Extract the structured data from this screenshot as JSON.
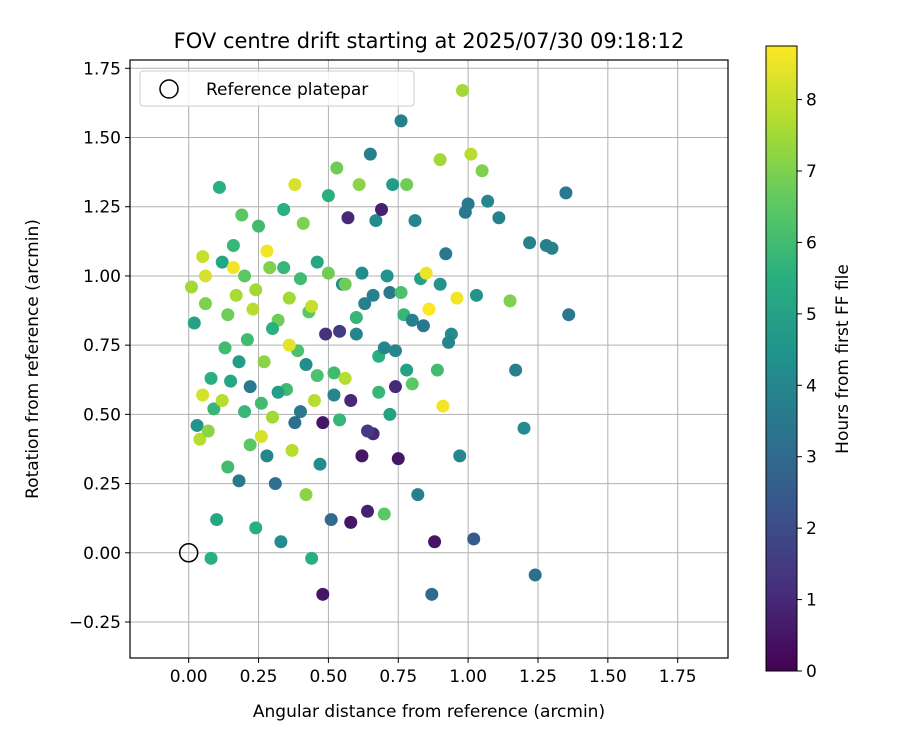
{
  "chart_data": {
    "type": "scatter",
    "title": "FOV centre drift starting at 2025/07/30 09:18:12",
    "xlabel": "Angular distance from reference (arcmin)",
    "ylabel": "Rotation from reference (arcmin)",
    "xlim": [
      -0.21,
      1.93
    ],
    "ylim": [
      -0.38,
      1.78
    ],
    "xticks": [
      "0.00",
      "0.25",
      "0.50",
      "0.75",
      "1.00",
      "1.25",
      "1.50",
      "1.75"
    ],
    "yticks": [
      "−0.25",
      "0.00",
      "0.25",
      "0.50",
      "0.75",
      "1.00",
      "1.25",
      "1.50",
      "1.75"
    ],
    "grid": true,
    "legend": {
      "placement": "top-left",
      "entries": [
        "Reference platepar"
      ]
    },
    "reference_point": {
      "x": 0.0,
      "y": 0.0
    },
    "colorbar": {
      "label": "Hours from first FF file",
      "range": [
        0,
        8.75
      ],
      "ticks": [
        "0",
        "1",
        "2",
        "3",
        "4",
        "5",
        "6",
        "7",
        "8"
      ],
      "colormap": "viridis"
    },
    "points": [
      {
        "x": 0.01,
        "y": 0.96,
        "h": 7.5
      },
      {
        "x": 0.02,
        "y": 0.83,
        "h": 5.0
      },
      {
        "x": 0.03,
        "y": 0.46,
        "h": 4.5
      },
      {
        "x": 0.04,
        "y": 0.41,
        "h": 7.8
      },
      {
        "x": 0.05,
        "y": 0.57,
        "h": 8.2
      },
      {
        "x": 0.06,
        "y": 0.9,
        "h": 7.0
      },
      {
        "x": 0.07,
        "y": 0.44,
        "h": 7.2
      },
      {
        "x": 0.08,
        "y": -0.02,
        "h": 5.5
      },
      {
        "x": 0.09,
        "y": 0.52,
        "h": 5.8
      },
      {
        "x": 0.1,
        "y": 0.12,
        "h": 5.2
      },
      {
        "x": 0.11,
        "y": 1.32,
        "h": 5.5
      },
      {
        "x": 0.12,
        "y": 0.55,
        "h": 7.8
      },
      {
        "x": 0.13,
        "y": 0.74,
        "h": 6.0
      },
      {
        "x": 0.14,
        "y": 0.31,
        "h": 6.0
      },
      {
        "x": 0.15,
        "y": 0.62,
        "h": 5.2
      },
      {
        "x": 0.16,
        "y": 1.11,
        "h": 5.8
      },
      {
        "x": 0.17,
        "y": 0.93,
        "h": 7.6
      },
      {
        "x": 0.18,
        "y": 0.26,
        "h": 3.5
      },
      {
        "x": 0.19,
        "y": 1.22,
        "h": 6.5
      },
      {
        "x": 0.2,
        "y": 0.51,
        "h": 5.8
      },
      {
        "x": 0.21,
        "y": 0.77,
        "h": 6.0
      },
      {
        "x": 0.22,
        "y": 0.39,
        "h": 6.5
      },
      {
        "x": 0.23,
        "y": 0.88,
        "h": 7.8
      },
      {
        "x": 0.24,
        "y": 0.09,
        "h": 5.5
      },
      {
        "x": 0.25,
        "y": 1.18,
        "h": 6.0
      },
      {
        "x": 0.26,
        "y": 0.42,
        "h": 8.2
      },
      {
        "x": 0.27,
        "y": 0.69,
        "h": 7.2
      },
      {
        "x": 0.28,
        "y": 0.35,
        "h": 4.0
      },
      {
        "x": 0.29,
        "y": 1.03,
        "h": 7.0
      },
      {
        "x": 0.3,
        "y": 0.49,
        "h": 7.5
      },
      {
        "x": 0.31,
        "y": 0.25,
        "h": 3.2
      },
      {
        "x": 0.32,
        "y": 0.84,
        "h": 6.8
      },
      {
        "x": 0.33,
        "y": 0.04,
        "h": 4.2
      },
      {
        "x": 0.34,
        "y": 1.24,
        "h": 5.5
      },
      {
        "x": 0.35,
        "y": 0.59,
        "h": 6.0
      },
      {
        "x": 0.36,
        "y": 0.92,
        "h": 7.5
      },
      {
        "x": 0.37,
        "y": 0.37,
        "h": 7.8
      },
      {
        "x": 0.38,
        "y": 1.33,
        "h": 8.2
      },
      {
        "x": 0.39,
        "y": 0.73,
        "h": 6.2
      },
      {
        "x": 0.4,
        "y": 0.51,
        "h": 3.5
      },
      {
        "x": 0.41,
        "y": 1.19,
        "h": 7.0
      },
      {
        "x": 0.42,
        "y": 0.21,
        "h": 7.2
      },
      {
        "x": 0.43,
        "y": 0.87,
        "h": 6.5
      },
      {
        "x": 0.44,
        "y": -0.02,
        "h": 5.5
      },
      {
        "x": 0.45,
        "y": 0.55,
        "h": 7.8
      },
      {
        "x": 0.46,
        "y": 1.05,
        "h": 5.2
      },
      {
        "x": 0.47,
        "y": 0.32,
        "h": 4.2
      },
      {
        "x": 0.48,
        "y": -0.15,
        "h": 0.5
      },
      {
        "x": 0.49,
        "y": 0.79,
        "h": 1.2
      },
      {
        "x": 0.5,
        "y": 1.29,
        "h": 5.5
      },
      {
        "x": 0.51,
        "y": 0.12,
        "h": 3.0
      },
      {
        "x": 0.52,
        "y": 0.65,
        "h": 6.0
      },
      {
        "x": 0.53,
        "y": 1.39,
        "h": 6.8
      },
      {
        "x": 0.54,
        "y": 0.48,
        "h": 5.8
      },
      {
        "x": 0.55,
        "y": 0.97,
        "h": 4.2
      },
      {
        "x": 0.56,
        "y": 0.63,
        "h": 7.8
      },
      {
        "x": 0.57,
        "y": 1.21,
        "h": 1.0
      },
      {
        "x": 0.58,
        "y": 0.11,
        "h": 0.5
      },
      {
        "x": 0.6,
        "y": 0.79,
        "h": 4.0
      },
      {
        "x": 0.61,
        "y": 1.33,
        "h": 7.2
      },
      {
        "x": 0.62,
        "y": 0.35,
        "h": 0.5
      },
      {
        "x": 0.63,
        "y": 0.9,
        "h": 3.8
      },
      {
        "x": 0.64,
        "y": 0.15,
        "h": 0.8
      },
      {
        "x": 0.65,
        "y": 1.44,
        "h": 3.8
      },
      {
        "x": 0.66,
        "y": 0.43,
        "h": 1.0
      },
      {
        "x": 0.67,
        "y": 1.2,
        "h": 4.2
      },
      {
        "x": 0.68,
        "y": 0.71,
        "h": 5.5
      },
      {
        "x": 0.69,
        "y": 1.24,
        "h": 0.8
      },
      {
        "x": 0.7,
        "y": 0.14,
        "h": 6.5
      },
      {
        "x": 0.71,
        "y": 1.0,
        "h": 4.5
      },
      {
        "x": 0.72,
        "y": 0.5,
        "h": 5.0
      },
      {
        "x": 0.73,
        "y": 1.33,
        "h": 4.8
      },
      {
        "x": 0.74,
        "y": 0.6,
        "h": 1.0
      },
      {
        "x": 0.75,
        "y": 0.34,
        "h": 0.5
      },
      {
        "x": 0.76,
        "y": 1.56,
        "h": 3.8
      },
      {
        "x": 0.77,
        "y": 0.86,
        "h": 5.8
      },
      {
        "x": 0.78,
        "y": 1.33,
        "h": 6.8
      },
      {
        "x": 0.8,
        "y": 0.61,
        "h": 6.5
      },
      {
        "x": 0.81,
        "y": 1.2,
        "h": 4.0
      },
      {
        "x": 0.82,
        "y": 0.21,
        "h": 3.8
      },
      {
        "x": 0.83,
        "y": 0.99,
        "h": 5.0
      },
      {
        "x": 0.84,
        "y": 0.82,
        "h": 3.5
      },
      {
        "x": 0.85,
        "y": 1.01,
        "h": 8.5
      },
      {
        "x": 0.86,
        "y": 0.88,
        "h": 8.8
      },
      {
        "x": 0.87,
        "y": -0.15,
        "h": 3.0
      },
      {
        "x": 0.88,
        "y": 0.04,
        "h": 0.5
      },
      {
        "x": 0.89,
        "y": 0.66,
        "h": 6.0
      },
      {
        "x": 0.9,
        "y": 1.42,
        "h": 7.5
      },
      {
        "x": 0.91,
        "y": 0.53,
        "h": 8.6
      },
      {
        "x": 0.92,
        "y": 1.08,
        "h": 3.5
      },
      {
        "x": 0.94,
        "y": 0.79,
        "h": 4.2
      },
      {
        "x": 0.96,
        "y": 0.92,
        "h": 8.6
      },
      {
        "x": 0.97,
        "y": 0.35,
        "h": 4.0
      },
      {
        "x": 0.98,
        "y": 1.67,
        "h": 7.5
      },
      {
        "x": 0.99,
        "y": 1.23,
        "h": 3.5
      },
      {
        "x": 1.0,
        "y": 1.26,
        "h": 3.5
      },
      {
        "x": 1.01,
        "y": 1.44,
        "h": 7.8
      },
      {
        "x": 1.02,
        "y": 0.05,
        "h": 2.5
      },
      {
        "x": 1.03,
        "y": 0.93,
        "h": 4.5
      },
      {
        "x": 1.05,
        "y": 1.38,
        "h": 7.0
      },
      {
        "x": 1.07,
        "y": 1.27,
        "h": 4.0
      },
      {
        "x": 1.11,
        "y": 1.21,
        "h": 3.8
      },
      {
        "x": 1.15,
        "y": 0.91,
        "h": 7.0
      },
      {
        "x": 1.17,
        "y": 0.66,
        "h": 3.8
      },
      {
        "x": 1.2,
        "y": 0.45,
        "h": 4.2
      },
      {
        "x": 1.22,
        "y": 1.12,
        "h": 3.8
      },
      {
        "x": 1.24,
        "y": -0.08,
        "h": 3.2
      },
      {
        "x": 1.28,
        "y": 1.11,
        "h": 3.8
      },
      {
        "x": 1.3,
        "y": 1.1,
        "h": 3.8
      },
      {
        "x": 1.35,
        "y": 1.3,
        "h": 3.5
      },
      {
        "x": 1.36,
        "y": 0.86,
        "h": 3.5
      },
      {
        "x": 0.05,
        "y": 1.07,
        "h": 8.0
      },
      {
        "x": 0.06,
        "y": 1.0,
        "h": 8.2
      },
      {
        "x": 0.08,
        "y": 0.63,
        "h": 5.5
      },
      {
        "x": 0.12,
        "y": 1.05,
        "h": 5.2
      },
      {
        "x": 0.14,
        "y": 0.86,
        "h": 6.8
      },
      {
        "x": 0.16,
        "y": 1.03,
        "h": 8.6
      },
      {
        "x": 0.18,
        "y": 0.69,
        "h": 4.8
      },
      {
        "x": 0.2,
        "y": 1.0,
        "h": 6.5
      },
      {
        "x": 0.22,
        "y": 0.6,
        "h": 3.5
      },
      {
        "x": 0.24,
        "y": 0.95,
        "h": 7.5
      },
      {
        "x": 0.26,
        "y": 0.54,
        "h": 6.0
      },
      {
        "x": 0.28,
        "y": 1.09,
        "h": 8.6
      },
      {
        "x": 0.3,
        "y": 0.81,
        "h": 5.5
      },
      {
        "x": 0.32,
        "y": 0.58,
        "h": 4.8
      },
      {
        "x": 0.34,
        "y": 1.03,
        "h": 5.8
      },
      {
        "x": 0.36,
        "y": 0.75,
        "h": 8.4
      },
      {
        "x": 0.38,
        "y": 0.47,
        "h": 3.2
      },
      {
        "x": 0.4,
        "y": 0.99,
        "h": 6.0
      },
      {
        "x": 0.42,
        "y": 0.68,
        "h": 4.2
      },
      {
        "x": 0.44,
        "y": 0.89,
        "h": 8.0
      },
      {
        "x": 0.46,
        "y": 0.64,
        "h": 6.2
      },
      {
        "x": 0.48,
        "y": 0.47,
        "h": 0.5
      },
      {
        "x": 0.5,
        "y": 1.01,
        "h": 6.8
      },
      {
        "x": 0.52,
        "y": 0.57,
        "h": 4.0
      },
      {
        "x": 0.54,
        "y": 0.8,
        "h": 1.5
      },
      {
        "x": 0.56,
        "y": 0.97,
        "h": 6.8
      },
      {
        "x": 0.58,
        "y": 0.55,
        "h": 1.0
      },
      {
        "x": 0.6,
        "y": 0.85,
        "h": 5.8
      },
      {
        "x": 0.62,
        "y": 1.01,
        "h": 4.2
      },
      {
        "x": 0.64,
        "y": 0.44,
        "h": 1.5
      },
      {
        "x": 0.66,
        "y": 0.93,
        "h": 3.8
      },
      {
        "x": 0.68,
        "y": 0.58,
        "h": 5.8
      },
      {
        "x": 0.7,
        "y": 0.74,
        "h": 4.0
      },
      {
        "x": 0.72,
        "y": 0.94,
        "h": 3.5
      },
      {
        "x": 0.74,
        "y": 0.73,
        "h": 4.0
      },
      {
        "x": 0.76,
        "y": 0.94,
        "h": 6.2
      },
      {
        "x": 0.78,
        "y": 0.66,
        "h": 5.0
      },
      {
        "x": 0.8,
        "y": 0.84,
        "h": 3.8
      },
      {
        "x": 0.9,
        "y": 0.97,
        "h": 4.5
      },
      {
        "x": 0.93,
        "y": 0.76,
        "h": 4.0
      }
    ]
  }
}
